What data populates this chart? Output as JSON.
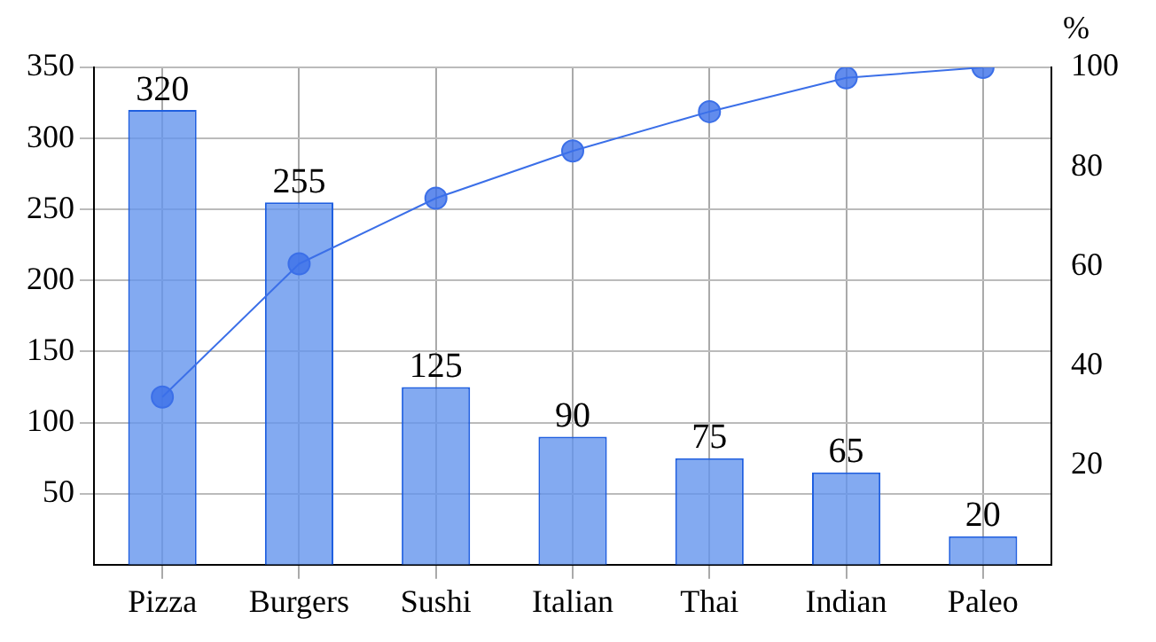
{
  "chart_data": {
    "type": "bar",
    "categories": [
      "Pizza",
      "Burgers",
      "Sushi",
      "Italian",
      "Thai",
      "Indian",
      "Paleo"
    ],
    "series": [
      {
        "color": "#6495ed",
        "values": [
          320,
          255,
          125,
          90,
          75,
          65,
          20
        ],
        "value_labels": [
          "320",
          "255",
          "125",
          "90",
          "75",
          "65",
          "20"
        ]
      },
      {
        "type": "line",
        "axis": "y2",
        "color": "#3b6fe8",
        "values": [
          33.7,
          60.5,
          73.7,
          83.2,
          91.1,
          97.9,
          100
        ]
      }
    ],
    "y2label": "%",
    "ylim": [
      0,
      350
    ],
    "yticks": [
      50,
      100,
      150,
      200,
      250,
      300,
      350
    ],
    "y2lim": [
      0,
      100
    ],
    "y2ticks": [
      20,
      40,
      60,
      80,
      100
    ],
    "grid": true,
    "legend": false,
    "marker": "circle",
    "line_style": "solid"
  }
}
